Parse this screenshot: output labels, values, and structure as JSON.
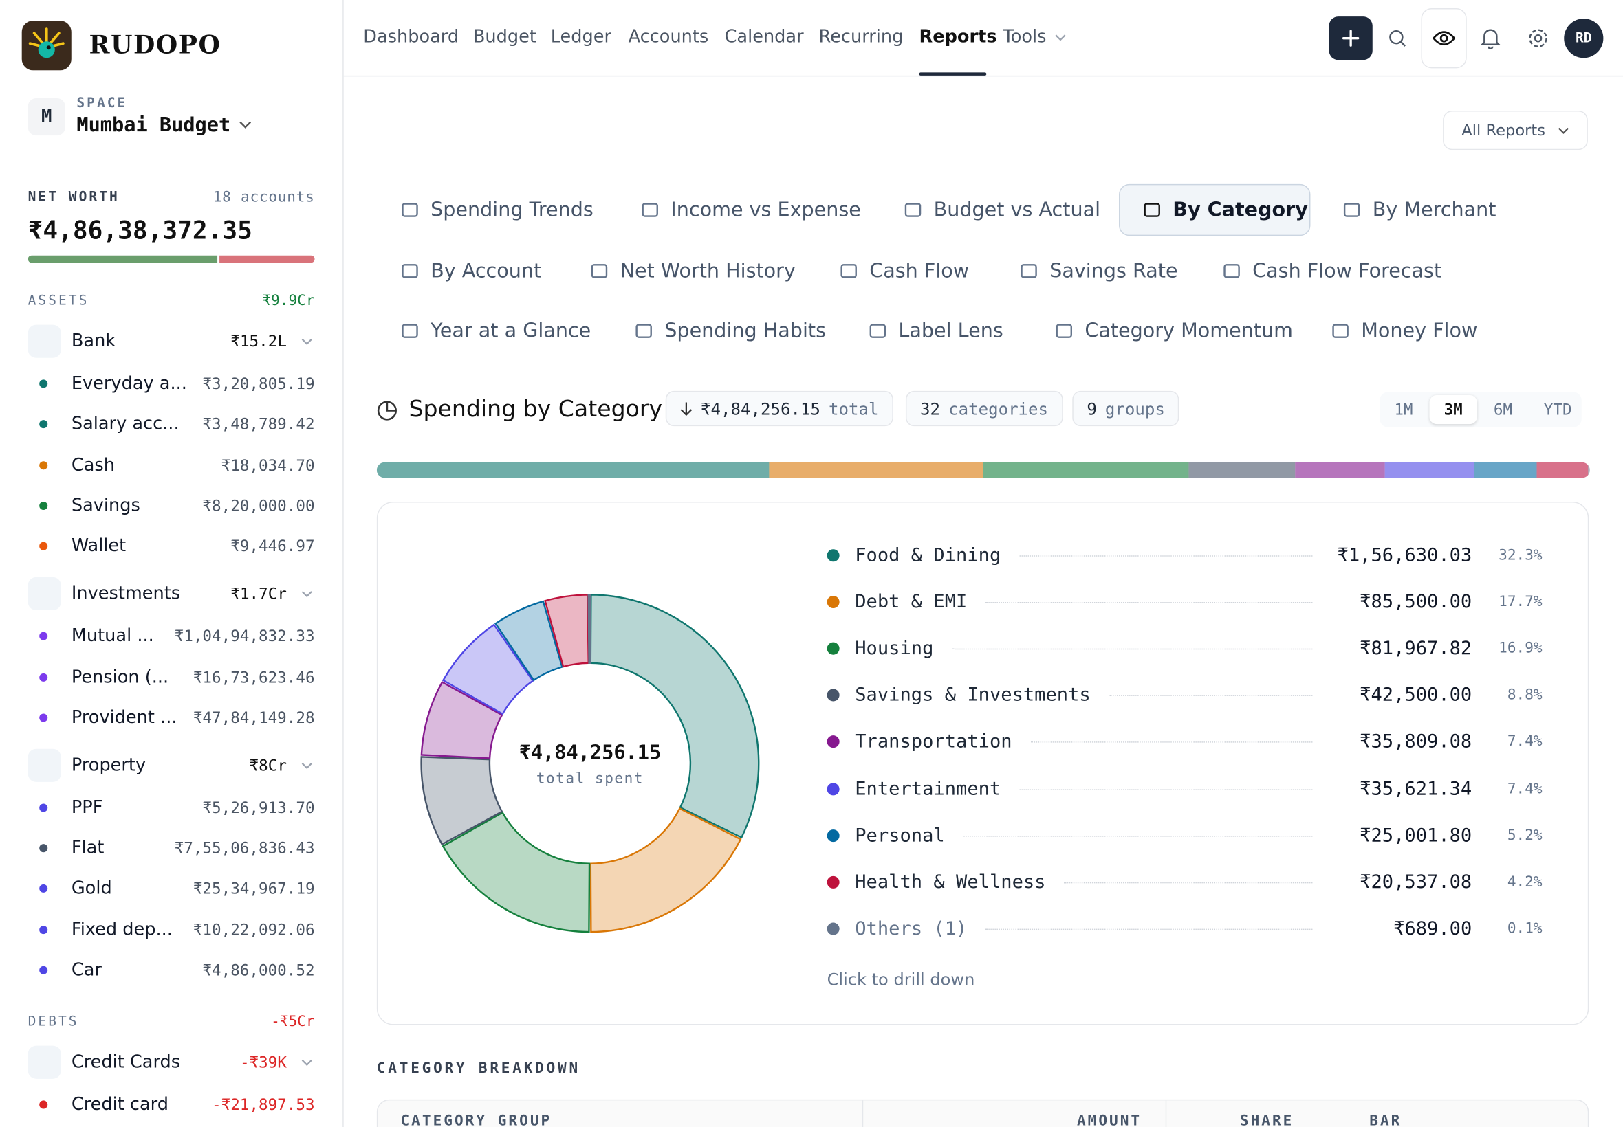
{
  "sidebar": {
    "brand": "RUDOPO",
    "space": {
      "avatar": "M",
      "label": "SPACE",
      "name": "Mumbai Budget"
    },
    "net_worth": {
      "label": "NET WORTH",
      "accounts": "18 accounts",
      "amount": "₹4,86,38,372.35"
    },
    "assets": {
      "label": "ASSETS",
      "total": "₹9.9Cr",
      "groups": [
        {
          "name": "Bank",
          "total": "₹15.2L",
          "items": [
            {
              "name": "Everyday a...",
              "amount": "₹3,20,805.19",
              "color": "#0f766e"
            },
            {
              "name": "Salary acc...",
              "amount": "₹3,48,789.42",
              "color": "#0f766e"
            },
            {
              "name": "Cash",
              "amount": "₹18,034.70",
              "color": "#d97706"
            },
            {
              "name": "Savings",
              "amount": "₹8,20,000.00",
              "color": "#15803d"
            },
            {
              "name": "Wallet",
              "amount": "₹9,446.97",
              "color": "#ea580c"
            }
          ]
        },
        {
          "name": "Investments",
          "total": "₹1.7Cr",
          "items": [
            {
              "name": "Mutual ...",
              "amount": "₹1,04,94,832.33",
              "color": "#7c3aed"
            },
            {
              "name": "Pension (...",
              "amount": "₹16,73,623.46",
              "color": "#7c3aed"
            },
            {
              "name": "Provident ...",
              "amount": "₹47,84,149.28",
              "color": "#7c3aed"
            }
          ]
        },
        {
          "name": "Property",
          "total": "₹8Cr",
          "items": [
            {
              "name": "PPF",
              "amount": "₹5,26,913.70",
              "color": "#4f46e5"
            },
            {
              "name": "Flat",
              "amount": "₹7,55,06,836.43",
              "color": "#475569"
            },
            {
              "name": "Gold",
              "amount": "₹25,34,967.19",
              "color": "#4f46e5"
            },
            {
              "name": "Fixed dep...",
              "amount": "₹10,22,092.06",
              "color": "#4f46e5"
            },
            {
              "name": "Car",
              "amount": "₹4,86,000.52",
              "color": "#4f46e5"
            }
          ]
        }
      ]
    },
    "debts": {
      "label": "DEBTS",
      "total": "-₹5Cr",
      "groups": [
        {
          "name": "Credit Cards",
          "total": "-₹39K",
          "items": [
            {
              "name": "Credit card",
              "amount": "-₹21,897.53",
              "color": "#dc2626"
            }
          ]
        }
      ]
    }
  },
  "nav": {
    "items": [
      {
        "label": "Dashboard"
      },
      {
        "label": "Budget"
      },
      {
        "label": "Ledger"
      },
      {
        "label": "Accounts"
      },
      {
        "label": "Calendar"
      },
      {
        "label": "Recurring"
      },
      {
        "label": "Reports",
        "active": true
      },
      {
        "label": "Tools",
        "menu": true
      }
    ],
    "avatar": "RD"
  },
  "reports_menu": "All Reports",
  "tabs": [
    {
      "label": "Spending Trends"
    },
    {
      "label": "Income vs Expense"
    },
    {
      "label": "Budget vs Actual"
    },
    {
      "label": "By Category",
      "active": true
    },
    {
      "label": "By Merchant"
    },
    {
      "label": "By Account"
    },
    {
      "label": "Net Worth History"
    },
    {
      "label": "Cash Flow"
    },
    {
      "label": "Savings Rate"
    },
    {
      "label": "Cash Flow Forecast"
    },
    {
      "label": "Year at a Glance"
    },
    {
      "label": "Spending Habits"
    },
    {
      "label": "Label Lens"
    },
    {
      "label": "Category Momentum"
    },
    {
      "label": "Money Flow"
    }
  ],
  "section": {
    "title": "Spending by Category",
    "chips": [
      {
        "value": "₹4,84,256.15",
        "unit": "total"
      },
      {
        "value": "32",
        "unit": "categories"
      },
      {
        "value": "9",
        "unit": "groups"
      }
    ],
    "ranges": [
      {
        "label": "1M"
      },
      {
        "label": "3M",
        "active": true
      },
      {
        "label": "6M"
      },
      {
        "label": "YTD"
      }
    ],
    "center_amount": "₹4,84,256.15",
    "center_label": "total spent",
    "categories": [
      {
        "name": "Food & Dining",
        "amount": 156630.03,
        "amount_label": "₹1,56,630.03",
        "share": 32.3,
        "share_label": "32.3%",
        "color": "#0f766e"
      },
      {
        "name": "Debt & EMI",
        "amount": 85500.0,
        "amount_label": "₹85,500.00",
        "share": 17.7,
        "share_label": "17.7%",
        "color": "#d97706"
      },
      {
        "name": "Housing",
        "amount": 81967.82,
        "amount_label": "₹81,967.82",
        "share": 16.9,
        "share_label": "16.9%",
        "color": "#15803d"
      },
      {
        "name": "Savings & Investments",
        "amount": 42500.0,
        "amount_label": "₹42,500.00",
        "share": 8.8,
        "share_label": "8.8%",
        "color": "#475569"
      },
      {
        "name": "Transportation",
        "amount": 35809.08,
        "amount_label": "₹35,809.08",
        "share": 7.4,
        "share_label": "7.4%",
        "color": "#86198f"
      },
      {
        "name": "Entertainment",
        "amount": 35621.34,
        "amount_label": "₹35,621.34",
        "share": 7.4,
        "share_label": "7.4%",
        "color": "#4f46e5"
      },
      {
        "name": "Personal",
        "amount": 25001.8,
        "amount_label": "₹25,001.80",
        "share": 5.2,
        "share_label": "5.2%",
        "color": "#0369a1"
      },
      {
        "name": "Health & Wellness",
        "amount": 20537.08,
        "amount_label": "₹20,537.08",
        "share": 4.2,
        "share_label": "4.2%",
        "color": "#be123c"
      },
      {
        "name": "Others (1)",
        "amount": 689.0,
        "amount_label": "₹689.00",
        "share": 0.1,
        "share_label": "0.1%",
        "color": "#64748b",
        "muted": true
      }
    ],
    "hint": "Click to drill down"
  },
  "breakdown": {
    "title": "CATEGORY BREAKDOWN",
    "columns": [
      "CATEGORY GROUP",
      "AMOUNT",
      "SHARE",
      "BAR"
    ]
  }
}
